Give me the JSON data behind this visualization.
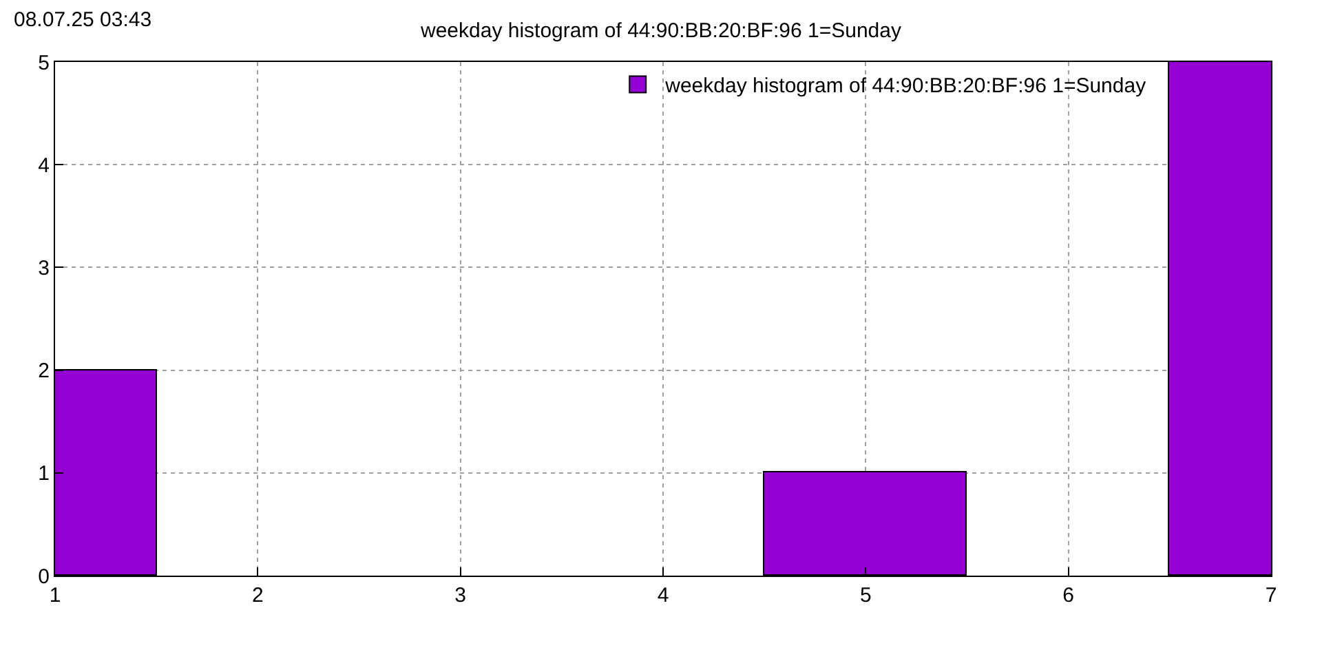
{
  "chart_data": {
    "type": "bar",
    "title": "weekday histogram of 44:90:BB:20:BF:96 1=Sunday",
    "annotations": [
      "08.07.25 03:43"
    ],
    "x": [
      1,
      5,
      7
    ],
    "series": [
      {
        "name": "weekday histogram of 44:90:BB:20:BF:96 1=Sunday",
        "color": "#9400d3",
        "values": [
          2,
          1,
          5
        ]
      }
    ],
    "xlim": [
      1,
      7
    ],
    "xticks": [
      1,
      2,
      3,
      4,
      5,
      6,
      7
    ],
    "ylim": [
      0,
      5
    ],
    "yticks": [
      0,
      1,
      2,
      3,
      4,
      5
    ],
    "grid": true,
    "legend": "top right"
  }
}
